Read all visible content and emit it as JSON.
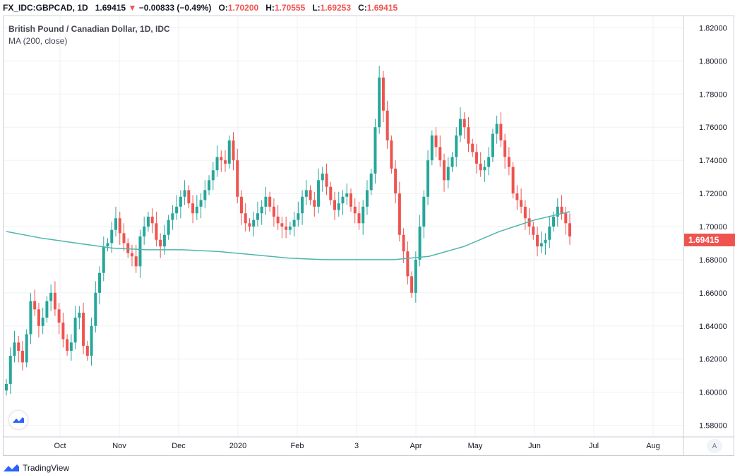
{
  "header": {
    "symbol": "FX_IDC:GBPCAD, 1D",
    "last": "1.69415",
    "change": "−0.00833 (−0.49%)",
    "open_label": "O:",
    "open": "1.70200",
    "high_label": "H:",
    "high": "1.70555",
    "low_label": "L:",
    "low": "1.69253",
    "close_label": "C:",
    "close": "1.69415"
  },
  "legend": {
    "title": "British Pound / Canadian Dollar, 1D, IDC",
    "ma": "MA (200, close)"
  },
  "price_tag": "1.69415",
  "auto_label": "A",
  "footer": {
    "brand": "TradingView"
  },
  "colors": {
    "up": "#26a69a",
    "down": "#ef5350",
    "ma": "#4db6ac",
    "grid": "#eef0f3"
  },
  "chart_data": {
    "type": "candlestick",
    "yaxis": {
      "ticks": [
        "1.82000",
        "1.80000",
        "1.78000",
        "1.76000",
        "1.74000",
        "1.72000",
        "1.70000",
        "1.68000",
        "1.66000",
        "1.64000",
        "1.62000",
        "1.60000",
        "1.58000"
      ],
      "range": [
        1.573,
        1.827
      ]
    },
    "xaxis": {
      "labels": [
        "Oct",
        "Nov",
        "Dec",
        "2020",
        "Feb",
        "3",
        "Apr",
        "May",
        "Jun",
        "Jul",
        "Aug"
      ]
    },
    "ohlc_close": [
      1.605,
      1.622,
      1.63,
      1.625,
      1.618,
      1.635,
      1.655,
      1.65,
      1.64,
      1.645,
      1.655,
      1.66,
      1.65,
      1.642,
      1.632,
      1.625,
      1.63,
      1.645,
      1.648,
      1.628,
      1.622,
      1.64,
      1.66,
      1.672,
      1.688,
      1.69,
      1.698,
      1.705,
      1.696,
      1.69,
      1.684,
      1.682,
      1.676,
      1.694,
      1.7,
      1.706,
      1.702,
      1.692,
      1.688,
      1.695,
      1.704,
      1.708,
      1.712,
      1.718,
      1.722,
      1.714,
      1.708,
      1.712,
      1.716,
      1.722,
      1.728,
      1.734,
      1.742,
      1.74,
      1.738,
      1.752,
      1.74,
      1.718,
      1.708,
      1.702,
      1.7,
      1.704,
      1.708,
      1.712,
      1.718,
      1.712,
      1.706,
      1.702,
      1.7,
      1.698,
      1.7,
      1.704,
      1.708,
      1.718,
      1.722,
      1.716,
      1.712,
      1.728,
      1.732,
      1.724,
      1.716,
      1.71,
      1.714,
      1.718,
      1.72,
      1.712,
      1.708,
      1.702,
      1.712,
      1.722,
      1.732,
      1.76,
      1.79,
      1.77,
      1.752,
      1.735,
      1.72,
      1.695,
      1.685,
      1.67,
      1.66,
      1.68,
      1.7,
      1.718,
      1.74,
      1.755,
      1.748,
      1.74,
      1.728,
      1.736,
      1.742,
      1.755,
      1.765,
      1.76,
      1.75,
      1.745,
      1.738,
      1.734,
      1.736,
      1.742,
      1.756,
      1.762,
      1.752,
      1.742,
      1.736,
      1.72,
      1.716,
      1.712,
      1.705,
      1.7,
      1.695,
      1.688,
      1.69,
      1.692,
      1.7,
      1.706,
      1.712,
      1.708,
      1.702,
      1.694
    ],
    "ma200": [
      1.697,
      1.693,
      1.69,
      1.687,
      1.686,
      1.686,
      1.685,
      1.683,
      1.681,
      1.68,
      1.68,
      1.68,
      1.682,
      1.688,
      1.697,
      1.704,
      1.709
    ]
  }
}
